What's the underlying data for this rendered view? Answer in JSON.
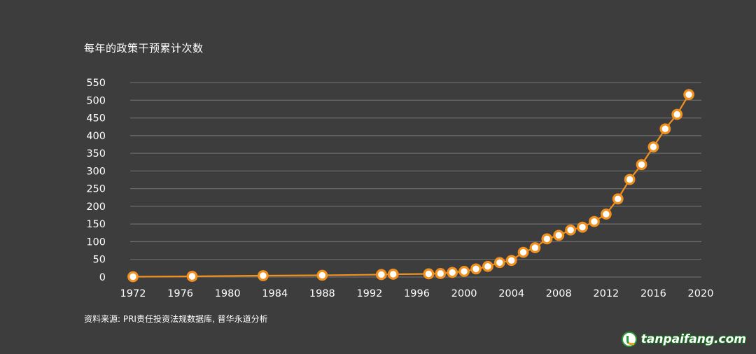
{
  "colors": {
    "background": "#3d3d3d",
    "grid": "#6a6a6a",
    "line": "#f0901e",
    "marker_fill": "#ffffff",
    "text": "#ffffff"
  },
  "chart_data": {
    "type": "line",
    "title": "每年的政策干预累计次数",
    "xlabel": "",
    "ylabel": "",
    "xlim": [
      1972,
      2020
    ],
    "ylim": [
      0,
      550
    ],
    "x_ticks": [
      1972,
      1976,
      1980,
      1984,
      1988,
      1992,
      1996,
      2000,
      2004,
      2008,
      2012,
      2016,
      2020
    ],
    "y_ticks": [
      0,
      50,
      100,
      150,
      200,
      250,
      300,
      350,
      400,
      450,
      500,
      550
    ],
    "grid": true,
    "legend": "none",
    "series": [
      {
        "x": [
          1972,
          1977,
          1983,
          1988,
          1993,
          1994,
          1997,
          1998,
          1999,
          2000,
          2001,
          2002,
          2003,
          2004,
          2005,
          2006,
          2007,
          2008,
          2009,
          2010,
          2011,
          2012,
          2013,
          2014,
          2015,
          2016,
          2017,
          2018,
          2019
        ],
        "y": [
          1,
          2,
          4,
          5,
          7,
          8,
          9,
          10,
          13,
          16,
          23,
          30,
          41,
          47,
          70,
          83,
          108,
          118,
          133,
          141,
          157,
          178,
          221,
          276,
          318,
          368,
          419,
          460,
          516
        ]
      }
    ]
  },
  "source_note": "资料来源: PRI责任投资法规数据库, 普华永道分析",
  "watermark": {
    "text": "tanpaifang.com",
    "icon": "tanpaifang-logo-icon"
  }
}
